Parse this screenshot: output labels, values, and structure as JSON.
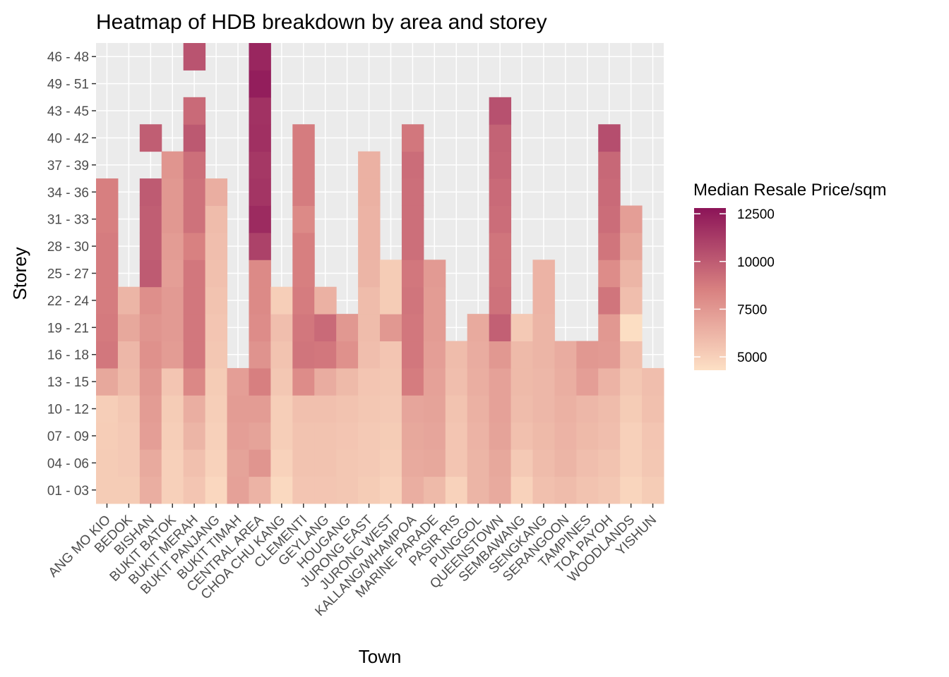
{
  "chart_data": {
    "type": "heatmap",
    "title": "Heatmap of HDB breakdown by area and storey",
    "xlabel": "Town",
    "ylabel": "Storey",
    "x": [
      "ANG MO KIO",
      "BEDOK",
      "BISHAN",
      "BUKIT BATOK",
      "BUKIT MERAH",
      "BUKIT PANJANG",
      "BUKIT TIMAH",
      "CENTRAL AREA",
      "CHOA CHU KANG",
      "CLEMENTI",
      "GEYLANG",
      "HOUGANG",
      "JURONG EAST",
      "JURONG WEST",
      "KALLANG/WHAMPOA",
      "MARINE PARADE",
      "PASIR RIS",
      "PUNGGOL",
      "QUEENSTOWN",
      "SEMBAWANG",
      "SENGKANG",
      "SERANGOON",
      "TAMPINES",
      "TOA PAYOH",
      "WOODLANDS",
      "YISHUN"
    ],
    "y": [
      "01 - 03",
      "04 - 06",
      "07 - 09",
      "10 - 12",
      "13 - 15",
      "16 - 18",
      "19 - 21",
      "22 - 24",
      "25 - 27",
      "28 - 30",
      "31 - 33",
      "34 - 36",
      "37 - 39",
      "40 - 42",
      "43 - 45",
      "49 - 51",
      "46 - 48"
    ],
    "values": [
      [
        5200,
        5200,
        5150,
        5100,
        6800,
        8900,
        8800,
        8700,
        8700,
        8700,
        8600,
        8600,
        null,
        null,
        null,
        null,
        null
      ],
      [
        5200,
        5300,
        5300,
        5400,
        6000,
        6100,
        6800,
        6200,
        null,
        null,
        null,
        null,
        null,
        null,
        null,
        null,
        null
      ],
      [
        6500,
        6700,
        7200,
        7300,
        7500,
        7800,
        7600,
        7900,
        10000,
        9900,
        9900,
        10000,
        null,
        9900,
        null,
        null,
        null
      ],
      [
        5000,
        5000,
        5100,
        5200,
        5500,
        7300,
        7400,
        7400,
        7200,
        7300,
        7500,
        7500,
        7600,
        null,
        null,
        null,
        null
      ],
      [
        5500,
        5700,
        6200,
        6500,
        8200,
        8900,
        8900,
        8900,
        8900,
        8500,
        9100,
        9100,
        9200,
        10100,
        9400,
        null,
        10300
      ],
      [
        4700,
        4900,
        5000,
        5100,
        5200,
        5400,
        5500,
        5600,
        5700,
        5800,
        5900,
        6500,
        null,
        null,
        null,
        null,
        null
      ],
      [
        7100,
        7000,
        7200,
        7300,
        7200,
        null,
        null,
        null,
        null,
        null,
        null,
        null,
        null,
        null,
        null,
        null,
        null
      ],
      [
        6300,
        7600,
        7000,
        7300,
        8600,
        7700,
        8000,
        8100,
        8100,
        11000,
        11900,
        11500,
        11400,
        11700,
        11600,
        12400,
        12100
      ],
      [
        4600,
        4900,
        5100,
        5100,
        5400,
        5600,
        5800,
        5100,
        null,
        null,
        null,
        null,
        null,
        null,
        null,
        null,
        null
      ],
      [
        5500,
        5600,
        5600,
        5700,
        8000,
        9000,
        8900,
        8700,
        8600,
        8600,
        8100,
        8700,
        8700,
        8700,
        null,
        null,
        null
      ],
      [
        5500,
        5600,
        5600,
        5700,
        6600,
        8900,
        9400,
        6400,
        null,
        null,
        null,
        null,
        null,
        null,
        null,
        null,
        null
      ],
      [
        5400,
        5400,
        5500,
        5600,
        6000,
        7800,
        7500,
        null,
        null,
        null,
        null,
        null,
        null,
        null,
        null,
        null,
        null
      ],
      [
        5200,
        5300,
        5300,
        5400,
        5500,
        5800,
        5900,
        5900,
        6200,
        6300,
        6300,
        6400,
        6400,
        null,
        null,
        null,
        null
      ],
      [
        4900,
        5100,
        5200,
        5300,
        5400,
        5500,
        7500,
        5200,
        5200,
        null,
        null,
        null,
        null,
        null,
        null,
        null,
        null
      ],
      [
        6500,
        6700,
        6800,
        6900,
        8700,
        8900,
        8900,
        9000,
        8900,
        9200,
        9200,
        9200,
        9300,
        8900,
        null,
        null,
        null
      ],
      [
        6000,
        6800,
        6900,
        7000,
        7100,
        7200,
        7300,
        7300,
        7400,
        null,
        null,
        null,
        null,
        null,
        null,
        null,
        null
      ],
      [
        4900,
        5500,
        5500,
        5600,
        5800,
        5900,
        null,
        null,
        null,
        null,
        null,
        null,
        null,
        null,
        null,
        null,
        null
      ],
      [
        6200,
        6200,
        6300,
        6400,
        6500,
        6600,
        6700,
        null,
        null,
        null,
        null,
        null,
        null,
        null,
        null,
        null,
        null
      ],
      [
        6700,
        6800,
        7000,
        7100,
        7100,
        7500,
        9800,
        9100,
        9000,
        9000,
        9300,
        9400,
        9600,
        9700,
        10400,
        null,
        null
      ],
      [
        4900,
        5300,
        5700,
        5900,
        6000,
        6000,
        5300,
        null,
        null,
        null,
        null,
        null,
        null,
        null,
        null,
        null,
        null
      ],
      [
        5700,
        5900,
        6000,
        6100,
        6100,
        6200,
        6200,
        6300,
        6300,
        null,
        null,
        null,
        null,
        null,
        null,
        null,
        null
      ],
      [
        5900,
        6200,
        6300,
        6400,
        6500,
        6600,
        null,
        null,
        null,
        null,
        null,
        null,
        null,
        null,
        null,
        null,
        null
      ],
      [
        5600,
        5800,
        6000,
        6100,
        7200,
        7500,
        null,
        null,
        null,
        null,
        null,
        null,
        null,
        null,
        null,
        null,
        null
      ],
      [
        5400,
        5600,
        5800,
        5900,
        6300,
        7400,
        7500,
        9000,
        8000,
        9000,
        9300,
        9400,
        9500,
        10500,
        null,
        null,
        null
      ],
      [
        4800,
        5000,
        5000,
        5200,
        5400,
        5700,
        4400,
        5800,
        6200,
        6800,
        7200,
        null,
        null,
        null,
        null,
        null,
        null
      ],
      [
        5200,
        5400,
        5500,
        5700,
        5800,
        null,
        null,
        null,
        null,
        null,
        null,
        null,
        null,
        null,
        null,
        null,
        null
      ]
    ],
    "legend": {
      "title": "Median Resale Price/sqm",
      "ticks": [
        5000,
        7500,
        10000,
        12500
      ],
      "range": [
        4300,
        12800
      ],
      "low_color": "#fde0c5",
      "high_color": "#8c1458",
      "placement": "right"
    },
    "panel_background": "#ebebeb",
    "grid_color": "#ffffff",
    "grid": true
  }
}
